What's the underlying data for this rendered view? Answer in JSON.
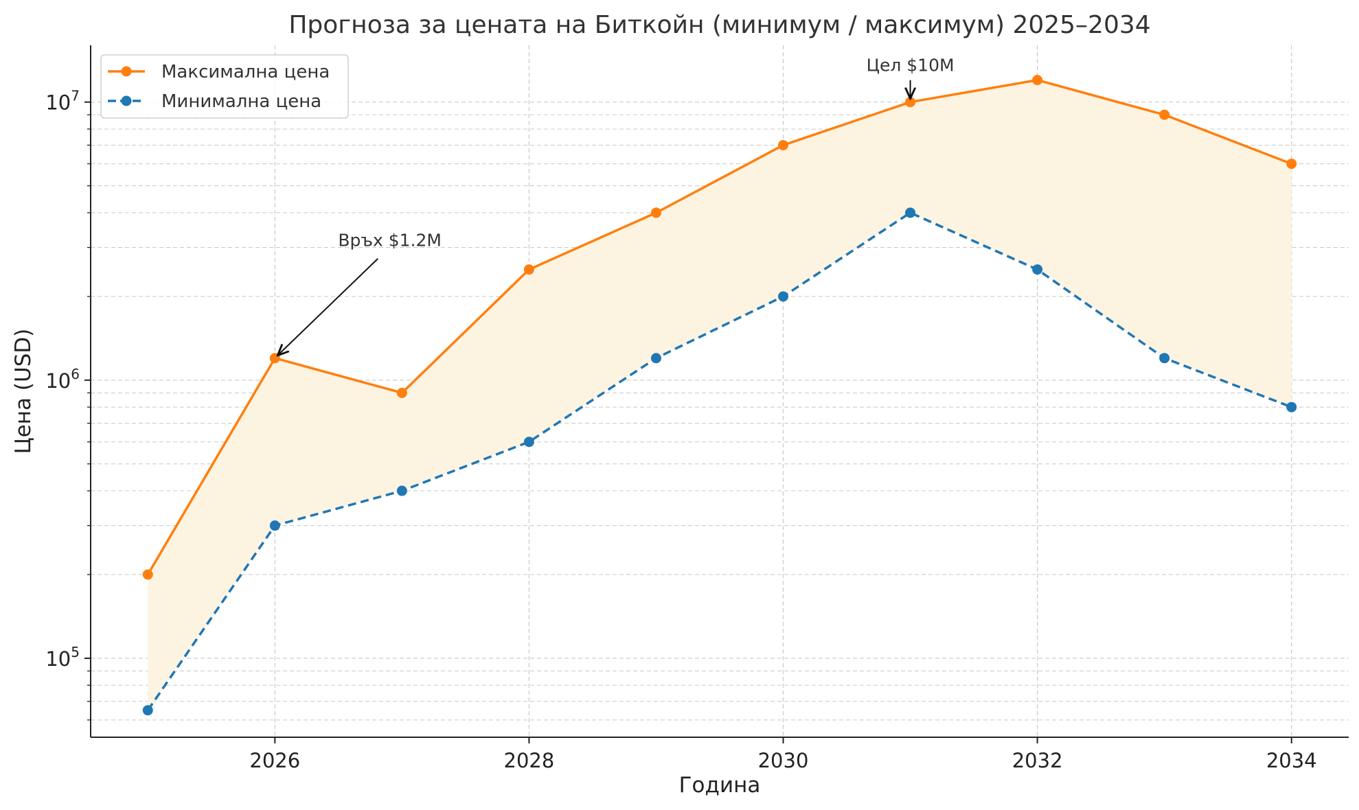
{
  "chart_data": {
    "type": "line",
    "title": "Прогноза за цената на Биткойн (минимум / максимум) 2025–2034",
    "xlabel": "Година",
    "ylabel": "Цена (USD)",
    "y_scale": "log",
    "x": [
      2025,
      2026,
      2027,
      2028,
      2029,
      2030,
      2031,
      2032,
      2033,
      2034
    ],
    "xlim": [
      2024.55,
      2034.45
    ],
    "ylim": [
      52000,
      16000000
    ],
    "x_ticks": [
      2026,
      2028,
      2030,
      2032,
      2034
    ],
    "x_tick_labels": [
      "2026",
      "2028",
      "2030",
      "2032",
      "2034"
    ],
    "y_ticks": [
      100000,
      1000000,
      10000000
    ],
    "y_tick_labels": [
      {
        "base": "10",
        "exp": "5"
      },
      {
        "base": "10",
        "exp": "6"
      },
      {
        "base": "10",
        "exp": "7"
      }
    ],
    "grid": true,
    "legend_position": "top-left",
    "fill_between": {
      "color": "#fdf3e1"
    },
    "series": [
      {
        "name": "Максимална цена",
        "color": "#ff7f0e",
        "style": "solid",
        "values": [
          200000,
          1200000,
          900000,
          2500000,
          4000000,
          7000000,
          10000000,
          12000000,
          9000000,
          6000000
        ]
      },
      {
        "name": "Минимална цена",
        "color": "#1f77b4",
        "style": "dashed",
        "values": [
          65000,
          300000,
          400000,
          600000,
          1200000,
          2000000,
          4000000,
          2500000,
          1200000,
          800000
        ]
      }
    ],
    "annotations": [
      {
        "text": "Връх $1.2M",
        "x": 2026,
        "y": 1200000
      },
      {
        "text": "Цел $10M",
        "x": 2031,
        "y": 10000000
      }
    ]
  }
}
